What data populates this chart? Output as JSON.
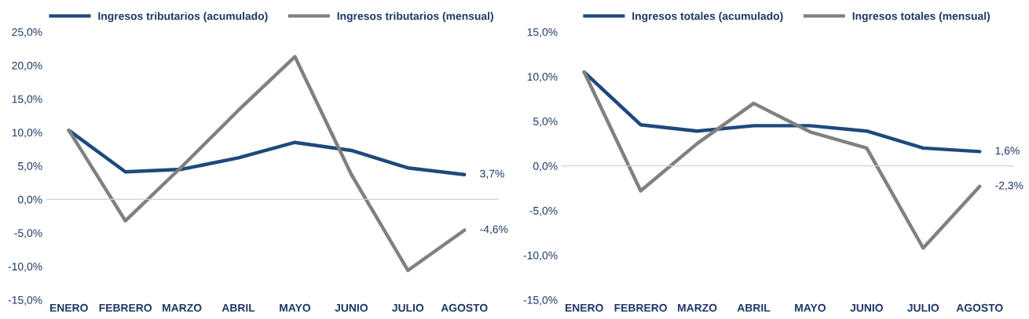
{
  "chart_data": [
    {
      "type": "line",
      "categories": [
        "ENERO",
        "FEBRERO",
        "MARZO",
        "ABRIL",
        "MAYO",
        "JUNIO",
        "JULIO",
        "AGOSTO"
      ],
      "ylim": [
        -15,
        25
      ],
      "yticks": [
        {
          "value": -15,
          "label": "-15,0%"
        },
        {
          "value": -10,
          "label": "-10,0%"
        },
        {
          "value": -5,
          "label": "-5,0%"
        },
        {
          "value": 0,
          "label": "0,0%"
        },
        {
          "value": 5,
          "label": "5,0%"
        },
        {
          "value": 10,
          "label": "10,0%"
        },
        {
          "value": 15,
          "label": "15,0%"
        },
        {
          "value": 20,
          "label": "20,0%"
        },
        {
          "value": 25,
          "label": "25,0%"
        }
      ],
      "ref_lines": [
        {
          "axis": "y",
          "value": 0,
          "color": "#c5d4ea"
        }
      ],
      "legend": "top",
      "marker": "none",
      "line_style": "solid",
      "series": [
        {
          "name": "Ingresos tributarios (acumulado)",
          "color": "#1f497d",
          "values": [
            10.3,
            4.1,
            4.5,
            6.2,
            8.5,
            7.3,
            4.7,
            3.7
          ],
          "value_labels": [
            null,
            null,
            null,
            null,
            null,
            null,
            null,
            "3,7%"
          ]
        },
        {
          "name": "Ingresos tributarios (mensual)",
          "color": "#808080",
          "values": [
            10.3,
            -3.2,
            4.9,
            13.3,
            21.3,
            3.7,
            -10.6,
            -4.6
          ],
          "value_labels": [
            null,
            null,
            null,
            null,
            null,
            null,
            null,
            "-4,6%"
          ]
        }
      ]
    },
    {
      "type": "line",
      "categories": [
        "ENERO",
        "FEBRERO",
        "MARZO",
        "ABRIL",
        "MAYO",
        "JUNIO",
        "JULIO",
        "AGOSTO"
      ],
      "ylim": [
        -15,
        15
      ],
      "yticks": [
        {
          "value": -15,
          "label": "-15,0%"
        },
        {
          "value": -10,
          "label": "-10,0%"
        },
        {
          "value": -5,
          "label": "-5,0%"
        },
        {
          "value": 0,
          "label": "0,0%"
        },
        {
          "value": 5,
          "label": "5,0%"
        },
        {
          "value": 10,
          "label": "10,0%"
        },
        {
          "value": 15,
          "label": "15,0%"
        }
      ],
      "ref_lines": [
        {
          "axis": "y",
          "value": 0,
          "color": "#c5d4ea"
        }
      ],
      "legend": "top",
      "marker": "none",
      "line_style": "solid",
      "series": [
        {
          "name": "Ingresos totales (acumulado)",
          "color": "#1f497d",
          "values": [
            10.5,
            4.6,
            3.9,
            4.5,
            4.5,
            3.9,
            2.0,
            1.6
          ],
          "value_labels": [
            null,
            null,
            null,
            null,
            null,
            null,
            null,
            "1,6%"
          ]
        },
        {
          "name": "Ingresos totales (mensual)",
          "color": "#808080",
          "values": [
            10.5,
            -2.8,
            2.5,
            7.0,
            3.8,
            2.0,
            -9.2,
            -2.3
          ],
          "value_labels": [
            null,
            null,
            null,
            null,
            null,
            null,
            null,
            "-2,3%"
          ]
        }
      ]
    }
  ]
}
